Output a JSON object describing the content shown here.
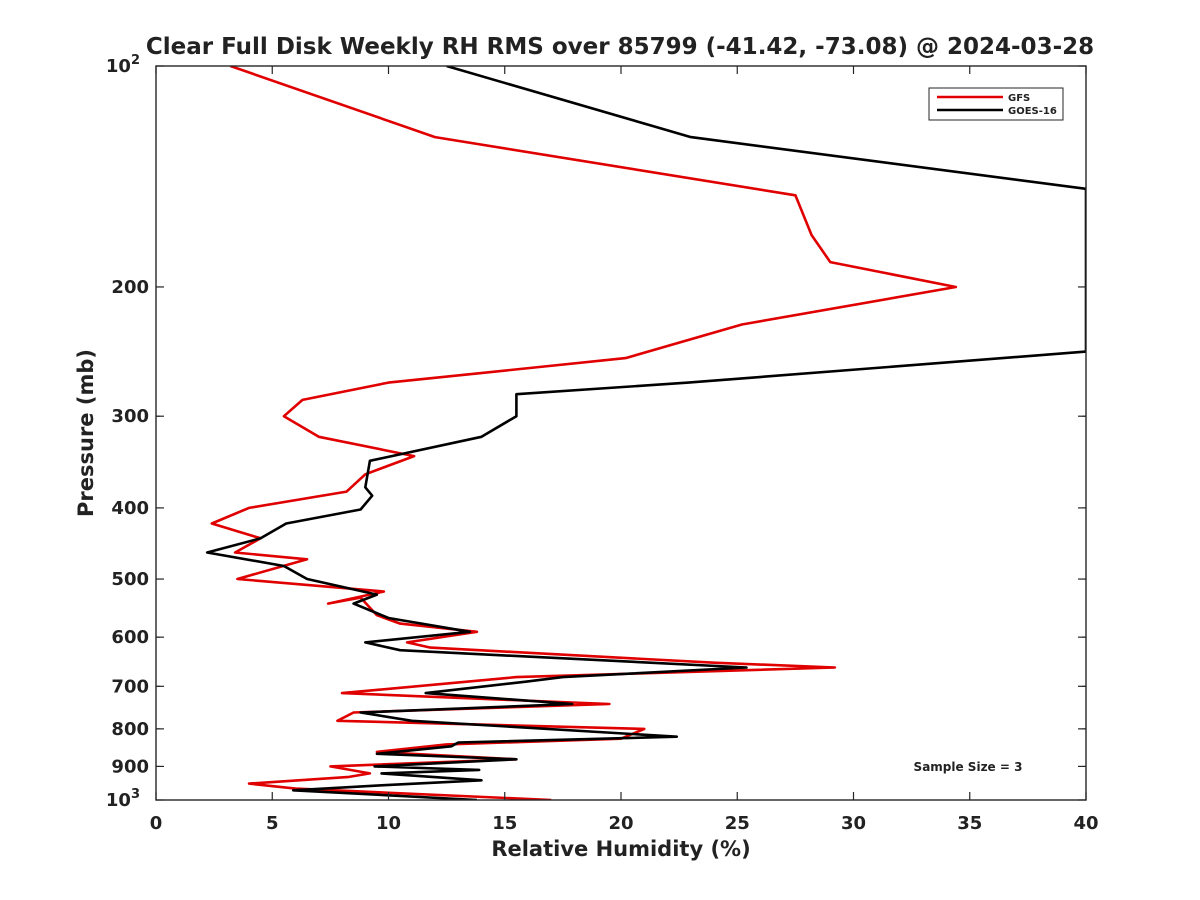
{
  "chart_data": {
    "type": "line",
    "title": "Clear Full Disk Weekly RH RMS over 85799 (-41.42, -73.08) @ 2024-03-28",
    "xlabel": "Relative Humidity (%)",
    "ylabel": "Pressure (mb)",
    "xlim": [
      0,
      40
    ],
    "ylim": [
      100,
      1000
    ],
    "y_scale": "log",
    "y_reversed": true,
    "grid": false,
    "legend_position": "top-right",
    "x_ticks": [
      "0",
      "5",
      "10",
      "15",
      "20",
      "25",
      "30",
      "35",
      "40"
    ],
    "y_ticks": [
      {
        "value": 100,
        "label": "10",
        "exp": "2"
      },
      {
        "value": 200,
        "label": "200"
      },
      {
        "value": 300,
        "label": "300"
      },
      {
        "value": 400,
        "label": "400"
      },
      {
        "value": 500,
        "label": "500"
      },
      {
        "value": 600,
        "label": "600"
      },
      {
        "value": 700,
        "label": "700"
      },
      {
        "value": 800,
        "label": "800"
      },
      {
        "value": 900,
        "label": "900"
      },
      {
        "value": 1000,
        "label": "10",
        "exp": "3"
      }
    ],
    "series": [
      {
        "name": "GFS",
        "color": "#e00000",
        "points": [
          [
            3.2,
            100
          ],
          [
            12,
            125
          ],
          [
            27.5,
            150
          ],
          [
            28.2,
            170
          ],
          [
            29,
            185
          ],
          [
            34.4,
            200
          ],
          [
            25.2,
            225
          ],
          [
            20.2,
            250
          ],
          [
            10,
            270
          ],
          [
            6.3,
            285
          ],
          [
            5.5,
            300
          ],
          [
            7,
            320
          ],
          [
            11.1,
            340
          ],
          [
            9,
            360
          ],
          [
            8.2,
            380
          ],
          [
            4,
            400
          ],
          [
            2.4,
            420
          ],
          [
            4.5,
            440
          ],
          [
            3.4,
            460
          ],
          [
            6.5,
            470
          ],
          [
            3.5,
            500
          ],
          [
            9.8,
            520
          ],
          [
            7.4,
            540
          ],
          [
            8.8,
            530
          ],
          [
            9.5,
            560
          ],
          [
            10.5,
            575
          ],
          [
            13.8,
            590
          ],
          [
            10.8,
            610
          ],
          [
            11.8,
            620
          ],
          [
            24,
            650
          ],
          [
            29.2,
            660
          ],
          [
            15.5,
            680
          ],
          [
            8,
            715
          ],
          [
            19.5,
            740
          ],
          [
            8.5,
            760
          ],
          [
            7.8,
            780
          ],
          [
            21,
            800
          ],
          [
            20,
            825
          ],
          [
            12.5,
            840
          ],
          [
            9.5,
            860
          ],
          [
            15.5,
            880
          ],
          [
            7.5,
            900
          ],
          [
            9.2,
            920
          ],
          [
            8.3,
            930
          ],
          [
            4,
            950
          ],
          [
            6,
            965
          ],
          [
            17,
            1000
          ]
        ]
      },
      {
        "name": "GOES-16",
        "color": "#000000",
        "points": [
          [
            12.5,
            100
          ],
          [
            23,
            125
          ],
          [
            40,
            147
          ],
          [
            40,
            245
          ],
          [
            22.9,
            270
          ],
          [
            15.5,
            280
          ],
          [
            15.5,
            300
          ],
          [
            14,
            320
          ],
          [
            9.2,
            345
          ],
          [
            9,
            375
          ],
          [
            9.3,
            385
          ],
          [
            8.8,
            402
          ],
          [
            5.6,
            420
          ],
          [
            4.5,
            440
          ],
          [
            2.2,
            460
          ],
          [
            5.5,
            480
          ],
          [
            6.5,
            500
          ],
          [
            9.5,
            525
          ],
          [
            8.5,
            540
          ],
          [
            10,
            565
          ],
          [
            13.5,
            590
          ],
          [
            9,
            610
          ],
          [
            10.5,
            625
          ],
          [
            25.4,
            660
          ],
          [
            17.5,
            680
          ],
          [
            15.9,
            690
          ],
          [
            11.6,
            715
          ],
          [
            17.9,
            740
          ],
          [
            8.8,
            760
          ],
          [
            11,
            780
          ],
          [
            22.4,
            820
          ],
          [
            13,
            835
          ],
          [
            12.7,
            845
          ],
          [
            9.5,
            865
          ],
          [
            15.5,
            880
          ],
          [
            9.4,
            900
          ],
          [
            13.9,
            910
          ],
          [
            9.7,
            920
          ],
          [
            14,
            940
          ],
          [
            9.7,
            955
          ],
          [
            5.9,
            970
          ],
          [
            13.8,
            1000
          ]
        ]
      }
    ],
    "annotations": [
      {
        "text": "Sample Size = 3"
      }
    ]
  }
}
